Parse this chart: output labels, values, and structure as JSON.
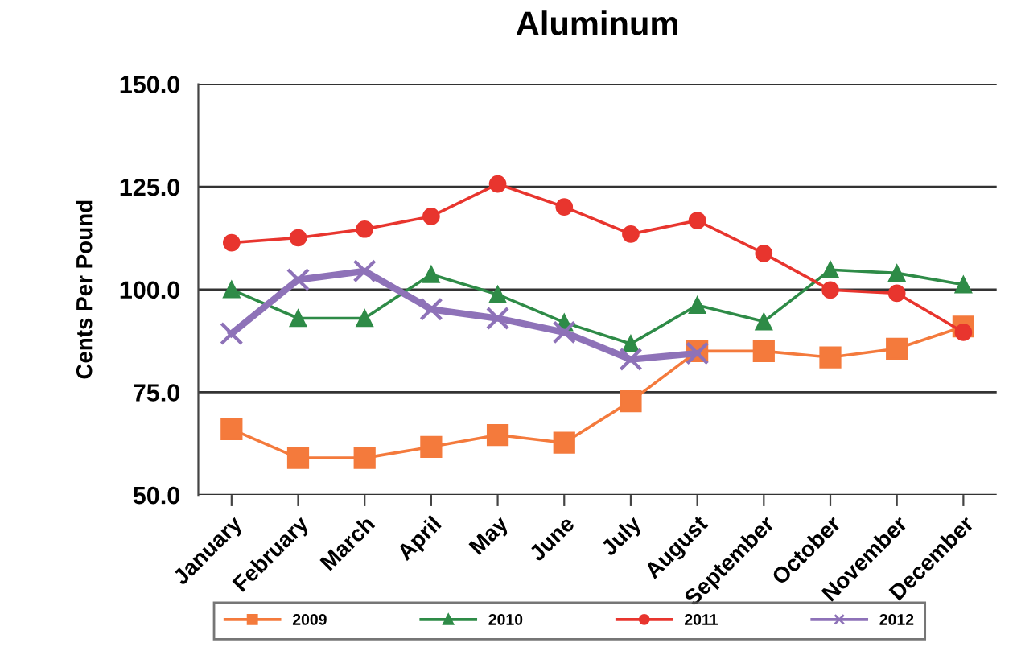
{
  "chart_data": {
    "type": "line",
    "title": "Aluminum",
    "ylabel": "Cents Per Pound",
    "categories": [
      "January",
      "February",
      "March",
      "April",
      "May",
      "June",
      "July",
      "August",
      "September",
      "October",
      "November",
      "December"
    ],
    "series": [
      {
        "name": "2009",
        "color": "#f47a3c",
        "marker": "square",
        "values": [
          66,
          59,
          59,
          61.7,
          64.6,
          62.7,
          72.8,
          85,
          85,
          83.5,
          85.6,
          91
        ]
      },
      {
        "name": "2010",
        "color": "#2e8b47",
        "marker": "triangle",
        "values": [
          100,
          93,
          93,
          103.7,
          98.8,
          92,
          86.8,
          96.2,
          92.2,
          104.8,
          104,
          101.2
        ]
      },
      {
        "name": "2011",
        "color": "#e8352e",
        "marker": "circle",
        "values": [
          111.4,
          112.6,
          114.7,
          117.8,
          125.7,
          120.1,
          113.5,
          116.8,
          108.8,
          99.9,
          99.1,
          89.6
        ]
      },
      {
        "name": "2012",
        "color": "#8e72b8",
        "marker": "cross",
        "values": [
          89.3,
          102.4,
          104.5,
          95.2,
          93,
          89.6,
          83,
          84.5,
          null,
          null,
          null,
          null
        ]
      }
    ],
    "ylim": [
      50,
      150
    ],
    "yticks": [
      {
        "value": 50,
        "label": "50.0"
      },
      {
        "value": 75,
        "label": "75.0"
      },
      {
        "value": 100,
        "label": "100.0"
      },
      {
        "value": 125,
        "label": "125.0"
      },
      {
        "value": 150,
        "label": "150.0"
      }
    ],
    "grid": "y",
    "legend": "bottom",
    "line_style": "solid"
  }
}
